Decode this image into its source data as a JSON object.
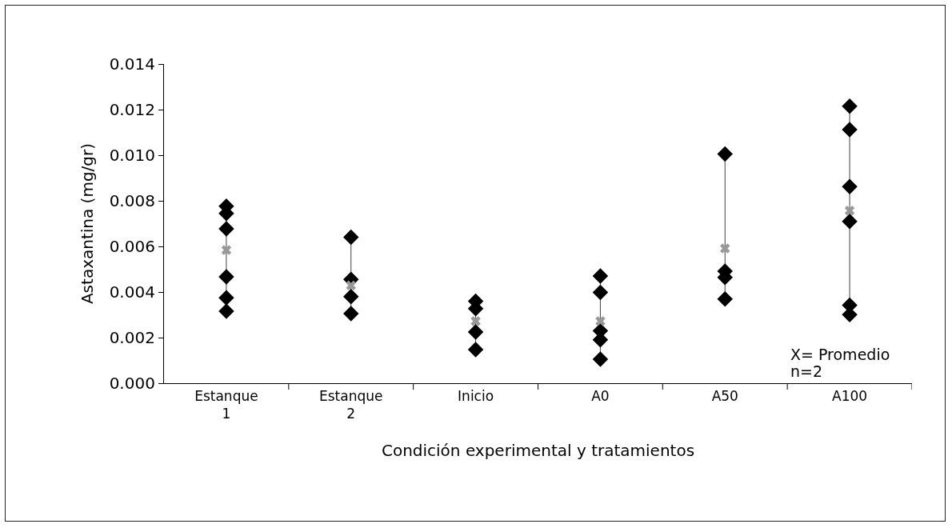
{
  "chart_data": {
    "type": "scatter",
    "xlabel": "Condición experimental y tratamientos",
    "ylabel": "Astaxantina (mg/gr)",
    "categories": [
      "Estanque 1",
      "Estanque 2",
      "Inicio",
      "A0",
      "A50",
      "A100"
    ],
    "series": [
      {
        "type": "line",
        "marker": "none",
        "color": "#404040",
        "x": [
          "Estanque 1",
          "Estanque 1",
          "Estanque 1",
          "Estanque 2",
          "Estanque 2",
          "Estanque 2",
          "Inicio",
          "Inicio",
          "Inicio",
          "A0",
          "A0",
          "A0",
          "A50",
          "A50",
          "A50",
          "A100",
          "A100"
        ],
        "values": [
          0.00316,
          0.00776,
          null,
          0.00305,
          0.0064,
          null,
          0.00147,
          0.0036,
          null,
          0.00105,
          0.0047,
          null,
          0.00369,
          0.01005,
          null,
          0.00301,
          0.01215
        ]
      },
      {
        "marker": "diamond",
        "color": "#000000",
        "x": [
          "Estanque 1",
          "Estanque 1",
          "Estanque 1",
          "Estanque 1",
          "Estanque 1",
          "Estanque 1",
          "Estanque 2",
          "Estanque 2",
          "Estanque 2",
          "Estanque 2",
          "Inicio",
          "Inicio",
          "Inicio",
          "Inicio",
          "A0",
          "A0",
          "A0",
          "A0",
          "A0",
          "A50",
          "A50",
          "A50",
          "A50",
          "A100",
          "A100",
          "A100",
          "A100",
          "A100",
          "A100"
        ],
        "values": [
          0.00776,
          0.00745,
          0.00677,
          0.00467,
          0.00375,
          0.00316,
          0.0064,
          0.00455,
          0.0038,
          0.00305,
          0.0036,
          0.00327,
          0.00225,
          0.00147,
          0.0047,
          0.00398,
          0.0023,
          0.0019,
          0.00105,
          0.01005,
          0.00491,
          0.00464,
          0.00369,
          0.01215,
          0.01112,
          0.00862,
          0.0071,
          0.00342,
          0.00301
        ]
      },
      {
        "marker": "cross",
        "color": "#999999",
        "values": [
          0.00584,
          0.00429,
          0.00272,
          0.00272,
          0.00591,
          0.00757
        ]
      }
    ],
    "ylim": [
      0,
      0.014
    ],
    "yticks": [
      {
        "value": 0,
        "label": "0.000"
      },
      {
        "value": 0.002,
        "label": "0.002"
      },
      {
        "value": 0.004,
        "label": "0.004"
      },
      {
        "value": 0.006,
        "label": "0.006"
      },
      {
        "value": 0.008,
        "label": "0.008"
      },
      {
        "value": 0.01,
        "label": "0.010"
      },
      {
        "value": 0.012,
        "label": "0.012"
      },
      {
        "value": 0.014,
        "label": "0.014"
      }
    ],
    "grid": false,
    "annotations": [
      "X= Promedio",
      "n=2"
    ]
  }
}
